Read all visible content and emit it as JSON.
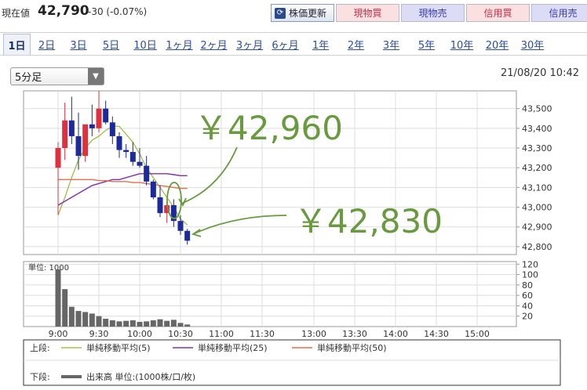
{
  "header": {
    "price_label": "現在値",
    "price": "42,790",
    "change": "-30 (-0.07%)",
    "update_button": "株価更新",
    "update_icon": "refresh-icon",
    "trade_buttons": [
      {
        "label": "現物買",
        "bg": "#fbe0e2",
        "color": "#c0304a"
      },
      {
        "label": "現物売",
        "bg": "#dcdcf6",
        "color": "#3a3ab0"
      },
      {
        "label": "信用買",
        "bg": "#fbe0e2",
        "color": "#c0304a"
      },
      {
        "label": "信用売",
        "bg": "#dcdcf6",
        "color": "#3a3ab0"
      }
    ]
  },
  "tabs": [
    "1日",
    "2日",
    "3日",
    "5日",
    "10日",
    "1ヶ月",
    "2ヶ月",
    "3ヶ月",
    "6ヶ月",
    "1年",
    "2年",
    "3年",
    "5年",
    "10年",
    "20年",
    "30年"
  ],
  "active_tab": "1日",
  "interval_select": "5分足",
  "timestamp": "21/08/20 10:42",
  "chart_data": [
    {
      "type": "candlestick",
      "x_ticks": [
        "9:00",
        "9:30",
        "10:00",
        "10:30",
        "11:00",
        "11:30",
        "13:00",
        "13:30",
        "14:00",
        "14:30",
        "15:00"
      ],
      "y_ticks": [
        "43,500",
        "43,400",
        "43,300",
        "43,200",
        "43,100",
        "43,000",
        "42,900",
        "42,800"
      ],
      "ylim": [
        42760,
        43590
      ],
      "candles": [
        {
          "t": "9:00",
          "o": 43200,
          "h": 43330,
          "l": 42960,
          "c": 43300
        },
        {
          "t": "9:05",
          "o": 43300,
          "h": 43530,
          "l": 43240,
          "c": 43440
        },
        {
          "t": "9:10",
          "o": 43440,
          "h": 43560,
          "l": 43320,
          "c": 43360
        },
        {
          "t": "9:15",
          "o": 43360,
          "h": 43480,
          "l": 43190,
          "c": 43260
        },
        {
          "t": "9:20",
          "o": 43260,
          "h": 43420,
          "l": 43230,
          "c": 43420
        },
        {
          "t": "9:25",
          "o": 43420,
          "h": 43520,
          "l": 43360,
          "c": 43400
        },
        {
          "t": "9:30",
          "o": 43400,
          "h": 43590,
          "l": 43380,
          "c": 43500
        },
        {
          "t": "9:35",
          "o": 43500,
          "h": 43540,
          "l": 43420,
          "c": 43430
        },
        {
          "t": "9:40",
          "o": 43430,
          "h": 43460,
          "l": 43320,
          "c": 43360
        },
        {
          "t": "9:45",
          "o": 43360,
          "h": 43380,
          "l": 43250,
          "c": 43290
        },
        {
          "t": "9:50",
          "o": 43290,
          "h": 43320,
          "l": 43250,
          "c": 43280
        },
        {
          "t": "9:55",
          "o": 43280,
          "h": 43330,
          "l": 43210,
          "c": 43230
        },
        {
          "t": "10:00",
          "o": 43230,
          "h": 43300,
          "l": 43200,
          "c": 43210
        },
        {
          "t": "10:05",
          "o": 43210,
          "h": 43260,
          "l": 43110,
          "c": 43130
        },
        {
          "t": "10:10",
          "o": 43130,
          "h": 43140,
          "l": 43040,
          "c": 43050
        },
        {
          "t": "10:15",
          "o": 43050,
          "h": 43110,
          "l": 42950,
          "c": 42970
        },
        {
          "t": "10:20",
          "o": 42970,
          "h": 43030,
          "l": 42920,
          "c": 43010
        },
        {
          "t": "10:25",
          "o": 43010,
          "h": 43040,
          "l": 42900,
          "c": 42930
        },
        {
          "t": "10:30",
          "o": 42930,
          "h": 42960,
          "l": 42860,
          "c": 42880
        },
        {
          "t": "10:35",
          "o": 42880,
          "h": 42890,
          "l": 42810,
          "c": 42830
        }
      ],
      "ma5": [
        42960,
        43050,
        43150,
        43240,
        43300,
        43340,
        43360,
        43390,
        43410,
        43410,
        43370,
        43330,
        43270,
        43200,
        43150,
        43100,
        43050,
        43000,
        42940,
        42910
      ],
      "ma25": [
        43010,
        43030,
        43050,
        43070,
        43090,
        43110,
        43120,
        43130,
        43140,
        43140,
        43150,
        43160,
        43170,
        43170,
        43170,
        43170,
        43170,
        43165,
        43160,
        43160
      ],
      "ma50": [
        43140,
        43140,
        43140,
        43140,
        43140,
        43140,
        43135,
        43135,
        43130,
        43130,
        43130,
        43125,
        43125,
        43120,
        43115,
        43110,
        43105,
        43100,
        43095,
        43095
      ],
      "annotations": [
        "￥42,960",
        "￥42,830"
      ],
      "colors": {
        "up": "#e03040",
        "down": "#1c2a9a",
        "ma5": "#a8c050",
        "ma25": "#8030b0",
        "ma50": "#e07050",
        "annotation": "#6a9a40"
      }
    },
    {
      "type": "bar",
      "unit_label": "単位: 1000",
      "y_ticks": [
        "120",
        "100",
        "80",
        "60",
        "40",
        "20"
      ],
      "ylim": [
        0,
        125
      ],
      "values": [
        110,
        72,
        38,
        30,
        28,
        25,
        20,
        15,
        12,
        10,
        11,
        12,
        9,
        10,
        12,
        14,
        11,
        13,
        7,
        4
      ]
    }
  ],
  "legend": {
    "upper_label": "上段:",
    "lower_label": "下段:",
    "items": [
      {
        "name": "単純移動平均(5)",
        "color": "#a8c050"
      },
      {
        "name": "単純移動平均(25)",
        "color": "#8030b0"
      },
      {
        "name": "単純移動平均(50)",
        "color": "#e07050"
      }
    ],
    "volume_item": {
      "name": "出来高 単位:(1000株/口/枚)",
      "color": "#666666"
    }
  }
}
